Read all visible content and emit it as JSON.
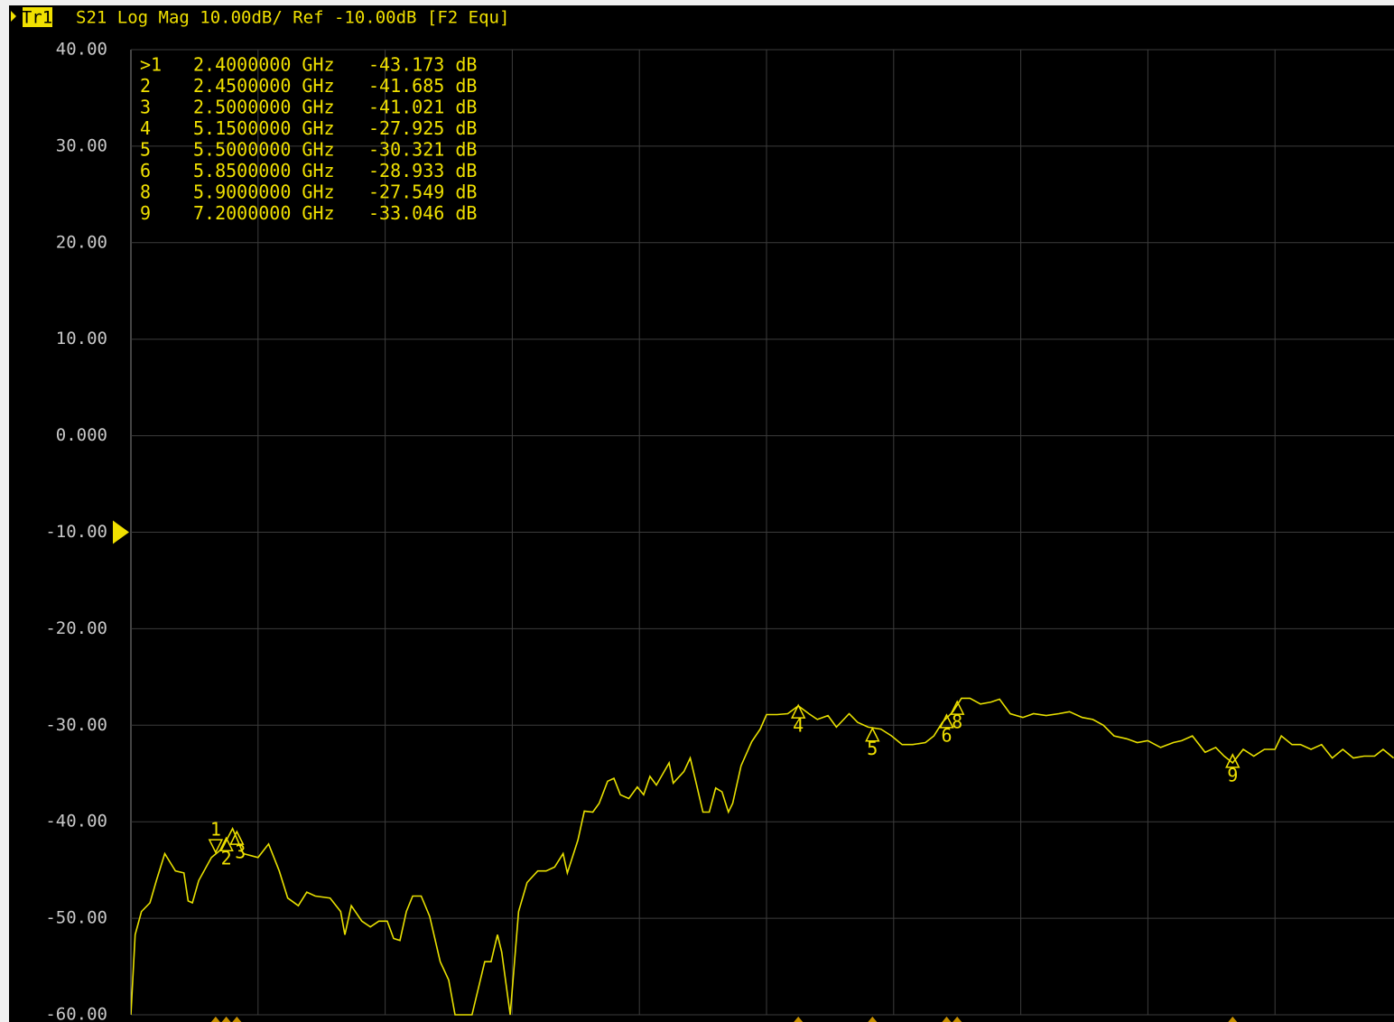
{
  "chart_data": {
    "type": "line",
    "title": "S21 Log Mag 10.00dB/ Ref -10.00dB [F2 Equ]",
    "ref_level": -10,
    "xlim": [
      2,
      8
    ],
    "xticks": [
      2,
      2.6,
      3.2,
      3.8,
      4.4,
      5,
      5.6,
      6.2,
      6.8,
      7.4,
      8
    ],
    "ylim": [
      -60,
      40
    ],
    "yticks": [
      {
        "value": 40,
        "label": "40.00"
      },
      {
        "value": 30,
        "label": "30.00"
      },
      {
        "value": 20,
        "label": "20.00"
      },
      {
        "value": 10,
        "label": "10.00"
      },
      {
        "value": 0,
        "label": "0.000"
      },
      {
        "value": -10,
        "label": "-10.00"
      },
      {
        "value": -20,
        "label": "-20.00"
      },
      {
        "value": -30,
        "label": "-30.00"
      },
      {
        "value": -40,
        "label": "-40.00"
      },
      {
        "value": -50,
        "label": "-50.00"
      },
      {
        "value": -60,
        "label": "-60.00"
      }
    ],
    "grid": true,
    "x": [
      2.0,
      2.02,
      2.05,
      2.09,
      2.12,
      2.16,
      2.21,
      2.25,
      2.27,
      2.29,
      2.32,
      2.38,
      2.43,
      2.48,
      2.53,
      2.6,
      2.65,
      2.7,
      2.74,
      2.79,
      2.83,
      2.87,
      2.94,
      2.99,
      3.01,
      3.04,
      3.09,
      3.13,
      3.17,
      3.21,
      3.24,
      3.27,
      3.3,
      3.33,
      3.37,
      3.41,
      3.46,
      3.5,
      3.53,
      3.61,
      3.67,
      3.7,
      3.73,
      3.75,
      3.79,
      3.83,
      3.87,
      3.92,
      3.96,
      4.0,
      4.04,
      4.06,
      4.11,
      4.14,
      4.18,
      4.21,
      4.25,
      4.28,
      4.31,
      4.35,
      4.39,
      4.42,
      4.45,
      4.48,
      4.54,
      4.56,
      4.61,
      4.64,
      4.67,
      4.7,
      4.73,
      4.76,
      4.79,
      4.82,
      4.84,
      4.88,
      4.93,
      4.97,
      5.0,
      5.05,
      5.1,
      5.15,
      5.2,
      5.24,
      5.29,
      5.33,
      5.39,
      5.43,
      5.48,
      5.54,
      5.59,
      5.64,
      5.69,
      5.75,
      5.79,
      5.83,
      5.88,
      5.92,
      5.96,
      6.01,
      6.06,
      6.1,
      6.15,
      6.21,
      6.26,
      6.32,
      6.38,
      6.43,
      6.49,
      6.54,
      6.59,
      6.64,
      6.7,
      6.75,
      6.8,
      6.86,
      6.92,
      6.96,
      7.01,
      7.07,
      7.12,
      7.16,
      7.2,
      7.25,
      7.3,
      7.35,
      7.4,
      7.43,
      7.48,
      7.52,
      7.57,
      7.62,
      7.67,
      7.72,
      7.77,
      7.82,
      7.87,
      7.91,
      7.96
    ],
    "series": [
      {
        "name": "Tr1",
        "color": "#e8e000",
        "values": [
          -60,
          -51.7,
          -49.3,
          -48.4,
          -46.1,
          -43.3,
          -45.1,
          -45.3,
          -48.2,
          -48.4,
          -46.1,
          -43.7,
          -42.8,
          -40.7,
          -43.3,
          -43.7,
          -42.3,
          -45.1,
          -47.9,
          -48.7,
          -47.3,
          -47.7,
          -47.9,
          -49.3,
          -51.7,
          -48.7,
          -50.3,
          -50.9,
          -50.3,
          -50.3,
          -52.1,
          -52.3,
          -49.3,
          -47.7,
          -47.7,
          -49.8,
          -54.5,
          -56.4,
          -60,
          -60,
          -54.5,
          -54.5,
          -51.7,
          -53.5,
          -60,
          -49.3,
          -46.3,
          -45.1,
          -45.1,
          -44.7,
          -43.3,
          -45.3,
          -41.9,
          -38.9,
          -39.0,
          -38.1,
          -35.8,
          -35.5,
          -37.2,
          -37.6,
          -36.4,
          -37.2,
          -35.3,
          -36.2,
          -33.9,
          -36.0,
          -34.8,
          -33.4,
          -36.2,
          -39.0,
          -39.0,
          -36.5,
          -36.9,
          -39.0,
          -38.1,
          -34.2,
          -31.7,
          -30.4,
          -28.9,
          -28.9,
          -28.8,
          -28.0,
          -28.8,
          -29.4,
          -29.0,
          -30.2,
          -28.8,
          -29.7,
          -30.2,
          -30.4,
          -31.1,
          -32.0,
          -32.0,
          -31.8,
          -31.1,
          -29.7,
          -28.6,
          -27.2,
          -27.2,
          -27.8,
          -27.6,
          -27.3,
          -28.8,
          -29.2,
          -28.8,
          -29.0,
          -28.8,
          -28.6,
          -29.2,
          -29.4,
          -30.0,
          -31.1,
          -31.4,
          -31.8,
          -31.6,
          -32.3,
          -31.8,
          -31.6,
          -31.1,
          -32.8,
          -32.3,
          -33.2,
          -33.9,
          -32.5,
          -33.2,
          -32.5,
          -32.5,
          -31.1,
          -32.0,
          -32.0,
          -32.5,
          -32.0,
          -33.4,
          -32.5,
          -33.4,
          -33.2,
          -33.2,
          -32.5,
          -33.4
        ]
      }
    ],
    "markers": [
      {
        "name": ">1",
        "tag": "1",
        "freq": 2.4,
        "freq_label": "2.4000000 GHz",
        "value": -43.173,
        "value_label": "-43.173 dB"
      },
      {
        "name": "2",
        "tag": "2",
        "freq": 2.45,
        "freq_label": "2.4500000 GHz",
        "value": -41.685,
        "value_label": "-41.685 dB"
      },
      {
        "name": "3",
        "tag": "3",
        "freq": 2.5,
        "freq_label": "2.5000000 GHz",
        "value": -41.021,
        "value_label": "-41.021 dB"
      },
      {
        "name": "4",
        "tag": "4",
        "freq": 5.15,
        "freq_label": "5.1500000 GHz",
        "value": -27.925,
        "value_label": "-27.925 dB"
      },
      {
        "name": "5",
        "tag": "5",
        "freq": 5.5,
        "freq_label": "5.5000000 GHz",
        "value": -30.321,
        "value_label": "-30.321 dB"
      },
      {
        "name": "6",
        "tag": "6",
        "freq": 5.85,
        "freq_label": "5.8500000 GHz",
        "value": -28.933,
        "value_label": "-28.933 dB"
      },
      {
        "name": "8",
        "tag": "8",
        "freq": 5.9,
        "freq_label": "5.9000000 GHz",
        "value": -27.549,
        "value_label": "-27.549 dB"
      },
      {
        "name": "9",
        "tag": "9",
        "freq": 7.2,
        "freq_label": "7.2000000 GHz",
        "value": -33.046,
        "value_label": "-33.046 dB"
      }
    ]
  }
}
